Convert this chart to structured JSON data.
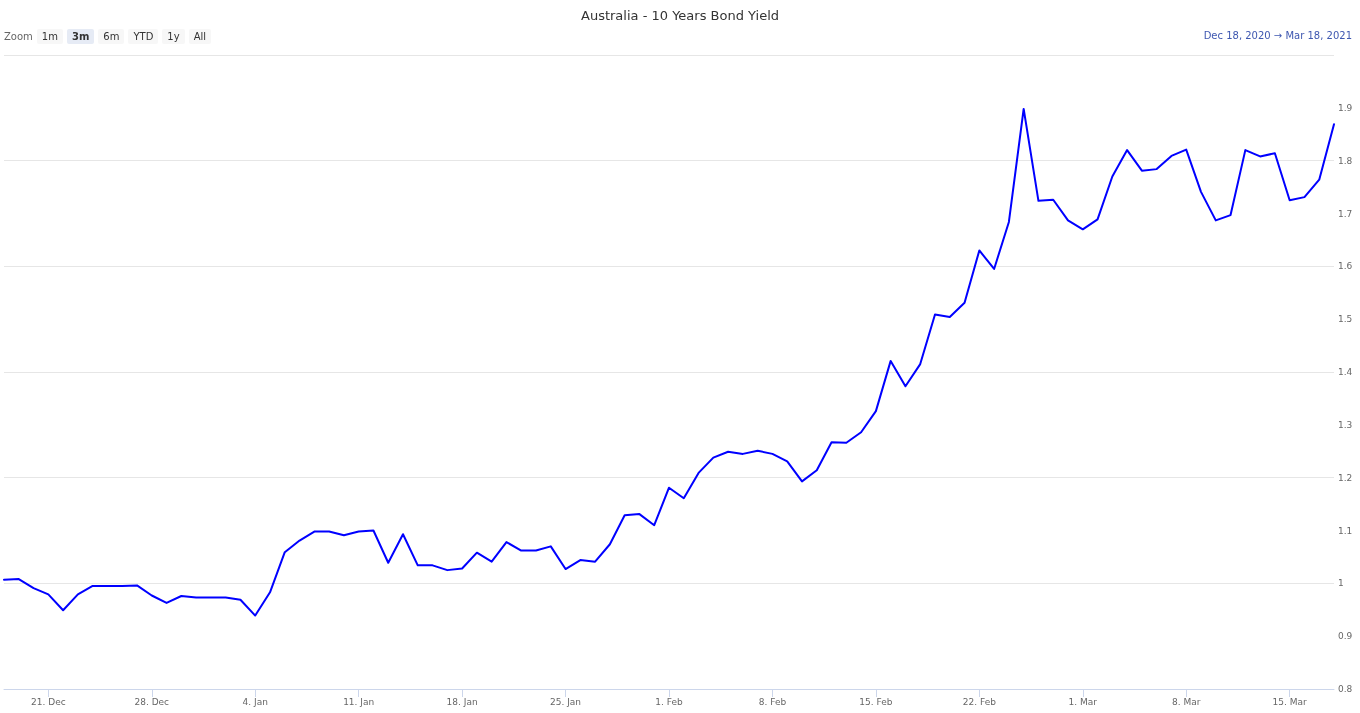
{
  "chart_data": {
    "type": "line",
    "title": "Australia - 10 Years Bond Yield",
    "annotations": [
      "Zoom",
      "1m",
      "3m",
      "6m",
      "YTD",
      "1y",
      "All",
      "Dec 18, 2020 → Mar 18, 2021"
    ],
    "x": [
      "2020-12-18",
      "2020-12-19",
      "2020-12-20",
      "2020-12-21",
      "2020-12-22",
      "2020-12-23",
      "2020-12-24",
      "2020-12-25",
      "2020-12-26",
      "2020-12-27",
      "2020-12-28",
      "2020-12-29",
      "2020-12-30",
      "2020-12-31",
      "2021-01-01",
      "2021-01-02",
      "2021-01-03",
      "2021-01-04",
      "2021-01-05",
      "2021-01-06",
      "2021-01-07",
      "2021-01-08",
      "2021-01-09",
      "2021-01-10",
      "2021-01-11",
      "2021-01-12",
      "2021-01-13",
      "2021-01-14",
      "2021-01-15",
      "2021-01-16",
      "2021-01-17",
      "2021-01-18",
      "2021-01-19",
      "2021-01-20",
      "2021-01-21",
      "2021-01-22",
      "2021-01-23",
      "2021-01-24",
      "2021-01-25",
      "2021-01-26",
      "2021-01-27",
      "2021-01-28",
      "2021-01-29",
      "2021-01-30",
      "2021-01-31",
      "2021-02-01",
      "2021-02-02",
      "2021-02-03",
      "2021-02-04",
      "2021-02-05",
      "2021-02-06",
      "2021-02-07",
      "2021-02-08",
      "2021-02-09",
      "2021-02-10",
      "2021-02-11",
      "2021-02-12",
      "2021-02-13",
      "2021-02-14",
      "2021-02-15",
      "2021-02-16",
      "2021-02-17",
      "2021-02-18",
      "2021-02-19",
      "2021-02-20",
      "2021-02-21",
      "2021-02-22",
      "2021-02-23",
      "2021-02-24",
      "2021-02-25",
      "2021-02-26",
      "2021-02-27",
      "2021-02-28",
      "2021-03-01",
      "2021-03-02",
      "2021-03-03",
      "2021-03-04",
      "2021-03-05",
      "2021-03-06",
      "2021-03-07",
      "2021-03-08",
      "2021-03-09",
      "2021-03-10",
      "2021-03-11",
      "2021-03-12",
      "2021-03-13",
      "2021-03-14",
      "2021-03-15",
      "2021-03-16",
      "2021-03-17",
      "2021-03-18"
    ],
    "series": [
      {
        "color": "#0000ff",
        "values": [
          1.007,
          1.008,
          0.991,
          0.979,
          0.949,
          0.979,
          0.995,
          0.995,
          0.995,
          0.996,
          0.977,
          0.963,
          0.976,
          0.973,
          0.973,
          0.973,
          0.969,
          0.939,
          0.983,
          1.059,
          1.081,
          1.098,
          1.098,
          1.091,
          1.098,
          1.1,
          1.039,
          1.093,
          1.034,
          1.034,
          1.025,
          1.028,
          1.058,
          1.041,
          1.078,
          1.062,
          1.062,
          1.07,
          1.027,
          1.044,
          1.041,
          1.074,
          1.129,
          1.131,
          1.11,
          1.181,
          1.161,
          1.209,
          1.238,
          1.249,
          1.245,
          1.251,
          1.245,
          1.231,
          1.193,
          1.214,
          1.267,
          1.266,
          1.286,
          1.326,
          1.421,
          1.373,
          1.415,
          1.509,
          1.504,
          1.531,
          1.63,
          1.595,
          1.684,
          1.898,
          1.724,
          1.726,
          1.687,
          1.67,
          1.689,
          1.77,
          1.82,
          1.781,
          1.784,
          1.809,
          1.821,
          1.741,
          1.687,
          1.697,
          1.82,
          1.808,
          1.814,
          1.725,
          1.731,
          1.764,
          1.869
        ]
      }
    ],
    "xlim": [
      "2020-12-18",
      "2021-03-18"
    ],
    "xticks": [
      {
        "value": "2020-12-21",
        "label": "21. Dec"
      },
      {
        "value": "2020-12-28",
        "label": "28. Dec"
      },
      {
        "value": "2021-01-04",
        "label": "4. Jan"
      },
      {
        "value": "2021-01-11",
        "label": "11. Jan"
      },
      {
        "value": "2021-01-18",
        "label": "18. Jan"
      },
      {
        "value": "2021-01-25",
        "label": "25. Jan"
      },
      {
        "value": "2021-02-01",
        "label": "1. Feb"
      },
      {
        "value": "2021-02-08",
        "label": "8. Feb"
      },
      {
        "value": "2021-02-15",
        "label": "15. Feb"
      },
      {
        "value": "2021-02-22",
        "label": "22. Feb"
      },
      {
        "value": "2021-03-01",
        "label": "1. Mar"
      },
      {
        "value": "2021-03-08",
        "label": "8. Mar"
      },
      {
        "value": "2021-03-15",
        "label": "15. Mar"
      }
    ],
    "ylim": [
      0.8,
      2.0
    ],
    "yticks": [
      0.8,
      0.9,
      1,
      1.1,
      1.2,
      1.3,
      1.4,
      1.5,
      1.6,
      1.7,
      1.8,
      1.9
    ],
    "grid": "y",
    "marker": "none",
    "line_style": "solid"
  }
}
